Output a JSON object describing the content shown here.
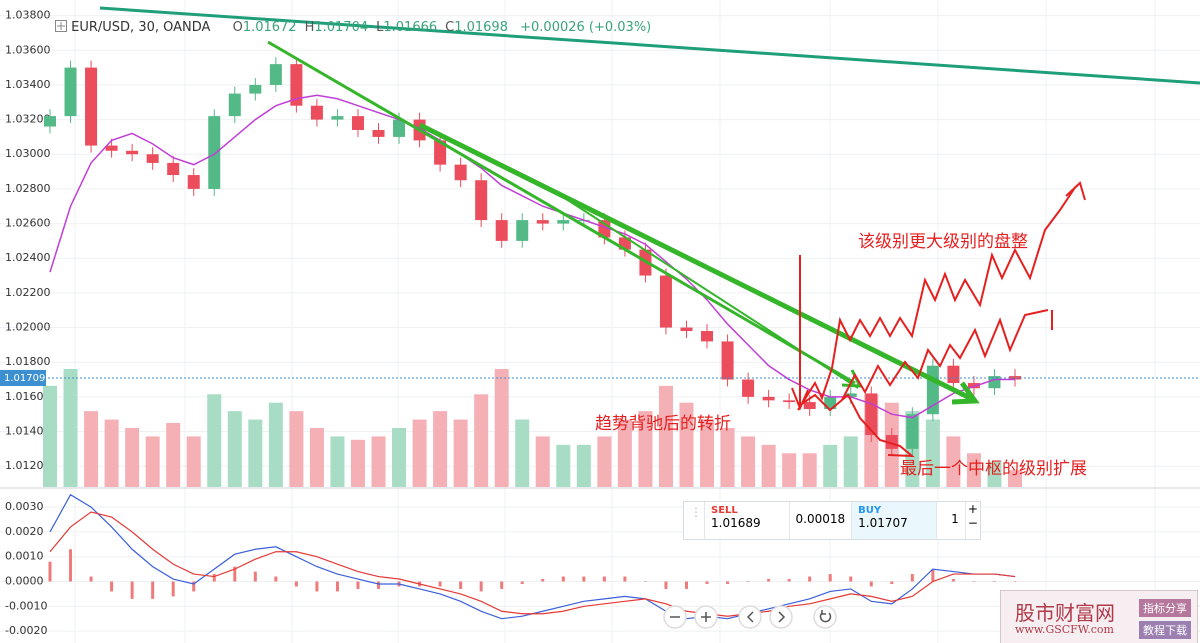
{
  "chart_data": [
    {
      "type": "candlestick",
      "categories": [
        null,
        null,
        null,
        null,
        null,
        null,
        null,
        null,
        null,
        null,
        null,
        null,
        null,
        null,
        null,
        null,
        null,
        null,
        null,
        null,
        null,
        null,
        null,
        null,
        null,
        null,
        null,
        null,
        null,
        null,
        null,
        null,
        null,
        null,
        null,
        null,
        null,
        null,
        null,
        null,
        null,
        null,
        null,
        null,
        null,
        null,
        null,
        null
      ],
      "open": [
        1.0316,
        1.0322,
        1.035,
        1.0305,
        1.0302,
        1.03,
        1.0295,
        1.0288,
        1.028,
        1.0322,
        1.0335,
        1.034,
        1.0352,
        1.0328,
        1.032,
        1.0322,
        1.0314,
        1.031,
        1.032,
        1.0308,
        1.0294,
        1.0285,
        1.0262,
        1.025,
        1.0262,
        1.026,
        1.0262,
        1.0262,
        1.0252,
        1.0245,
        1.023,
        1.02,
        1.0198,
        1.0192,
        1.017,
        1.016,
        1.0158,
        1.0157,
        1.0153,
        1.016,
        1.0162,
        1.0138,
        1.013,
        1.015,
        1.0178,
        1.0168,
        1.0165,
        1.0172
      ],
      "high": [
        1.0326,
        1.0354,
        1.0354,
        1.0309,
        1.0306,
        1.0304,
        1.0299,
        1.0292,
        1.0326,
        1.0339,
        1.0344,
        1.0356,
        1.0356,
        1.0332,
        1.0326,
        1.0326,
        1.0318,
        1.0324,
        1.0324,
        1.0312,
        1.0298,
        1.0289,
        1.0266,
        1.0266,
        1.0266,
        1.0266,
        1.0266,
        1.0266,
        1.0256,
        1.0249,
        1.0234,
        1.0204,
        1.0202,
        1.0196,
        1.0174,
        1.0164,
        1.0162,
        1.0161,
        1.0164,
        1.0166,
        1.0166,
        1.0142,
        1.0154,
        1.0182,
        1.0182,
        1.0172,
        1.0176,
        1.0176
      ],
      "low": [
        1.0312,
        1.0318,
        1.0301,
        1.0298,
        1.0296,
        1.0291,
        1.0284,
        1.0276,
        1.0276,
        1.0318,
        1.0331,
        1.0336,
        1.0324,
        1.0316,
        1.0316,
        1.031,
        1.0306,
        1.0306,
        1.0304,
        1.029,
        1.0281,
        1.0258,
        1.0246,
        1.0246,
        1.0256,
        1.0256,
        1.0258,
        1.0248,
        1.0241,
        1.0226,
        1.0196,
        1.0194,
        1.0188,
        1.0166,
        1.0156,
        1.0154,
        1.0153,
        1.0149,
        1.0149,
        1.0156,
        1.0134,
        1.0126,
        1.0126,
        1.0146,
        1.0164,
        1.0161,
        1.0161,
        1.0166
      ],
      "close": [
        1.0322,
        1.035,
        1.0305,
        1.0302,
        1.03,
        1.0295,
        1.0288,
        1.028,
        1.0322,
        1.0335,
        1.034,
        1.0352,
        1.0328,
        1.032,
        1.0322,
        1.0314,
        1.031,
        1.032,
        1.0308,
        1.0294,
        1.0285,
        1.0262,
        1.025,
        1.0262,
        1.026,
        1.0262,
        1.0262,
        1.0252,
        1.0245,
        1.023,
        1.02,
        1.0198,
        1.0192,
        1.017,
        1.016,
        1.0158,
        1.0157,
        1.0153,
        1.016,
        1.0162,
        1.0138,
        1.013,
        1.015,
        1.0178,
        1.0168,
        1.0165,
        1.0172,
        1.017
      ],
      "up_color": "#53b987",
      "down_color": "#eb4d5c",
      "ma": {
        "color": "#c03fd6",
        "values": [
          1.0232,
          1.027,
          1.0295,
          1.0308,
          1.0312,
          1.0306,
          1.0298,
          1.0294,
          1.03,
          1.031,
          1.032,
          1.0328,
          1.0332,
          1.0334,
          1.0332,
          1.0328,
          1.0324,
          1.032,
          1.0315,
          1.0308,
          1.03,
          1.0292,
          1.0282,
          1.0276,
          1.027,
          1.0266,
          1.0262,
          1.0258,
          1.0254,
          1.0248,
          1.0238,
          1.0228,
          1.0216,
          1.0202,
          1.019,
          1.0178,
          1.017,
          1.0164,
          1.016,
          1.016,
          1.0156,
          1.015,
          1.0148,
          1.0155,
          1.0162,
          1.0166,
          1.017,
          1.017
        ]
      },
      "volume": {
        "up_color": "#a8dcc4",
        "down_color": "#f5b0b6",
        "values": [
          60,
          70,
          45,
          40,
          35,
          30,
          38,
          30,
          55,
          45,
          40,
          50,
          45,
          35,
          30,
          28,
          30,
          35,
          40,
          45,
          40,
          55,
          70,
          40,
          30,
          25,
          25,
          30,
          40,
          45,
          60,
          50,
          40,
          35,
          30,
          25,
          20,
          20,
          25,
          30,
          55,
          50,
          45,
          40,
          30,
          20,
          15,
          10
        ]
      },
      "last_price": 1.01709,
      "last_price_color": "#3c8fd0",
      "ylim": [
        1.0108,
        1.0389
      ],
      "yticks": [
        {
          "value": 1.038,
          "label": "1.03800"
        },
        {
          "value": 1.036,
          "label": "1.03600"
        },
        {
          "value": 1.034,
          "label": "1.03400"
        },
        {
          "value": 1.032,
          "label": "1.03200"
        },
        {
          "value": 1.03,
          "label": "1.03000"
        },
        {
          "value": 1.028,
          "label": "1.02800"
        },
        {
          "value": 1.026,
          "label": "1.02600"
        },
        {
          "value": 1.024,
          "label": "1.02400"
        },
        {
          "value": 1.022,
          "label": "1.02200"
        },
        {
          "value": 1.02,
          "label": "1.02000"
        },
        {
          "value": 1.018,
          "label": "1.01800"
        },
        {
          "value": 1.016,
          "label": "1.01600"
        },
        {
          "value": 1.014,
          "label": "1.01400"
        },
        {
          "value": 1.012,
          "label": "1.01200"
        }
      ],
      "grid": true
    },
    {
      "type": "macd",
      "categories": [
        null,
        null,
        null,
        null,
        null,
        null,
        null,
        null,
        null,
        null,
        null,
        null,
        null,
        null,
        null,
        null,
        null,
        null,
        null,
        null,
        null,
        null,
        null,
        null,
        null,
        null,
        null,
        null,
        null,
        null,
        null,
        null,
        null,
        null,
        null,
        null,
        null,
        null,
        null,
        null,
        null,
        null,
        null,
        null,
        null,
        null,
        null,
        null
      ],
      "series": [
        {
          "color": "#3a5fd9",
          "values": [
            0.002,
            0.0035,
            0.003,
            0.0022,
            0.0013,
            0.0006,
            0.0001,
            -0.0001,
            0.0005,
            0.0011,
            0.0013,
            0.0014,
            0.001,
            0.0006,
            0.0003,
            0.0001,
            -0.0001,
            -0.0001,
            -0.0003,
            -0.0005,
            -0.0008,
            -0.0012,
            -0.0015,
            -0.0014,
            -0.0012,
            -0.001,
            -0.0008,
            -0.0007,
            -0.0006,
            -0.0007,
            -0.0012,
            -0.0015,
            -0.0014,
            -0.0015,
            -0.0013,
            -0.0011,
            -0.0009,
            -0.0007,
            -0.0004,
            -0.0003,
            -0.0008,
            -0.0009,
            -0.0003,
            0.0005,
            0.0004,
            0.0003,
            0.0003,
            0.0002
          ]
        },
        {
          "color": "#e53935",
          "values": [
            0.0012,
            0.0022,
            0.0028,
            0.0026,
            0.002,
            0.0013,
            0.0007,
            0.0003,
            0.0002,
            0.0005,
            0.0009,
            0.0012,
            0.0012,
            0.001,
            0.0007,
            0.0004,
            0.0002,
            0.0001,
            -0.0001,
            -0.0003,
            -0.0005,
            -0.0008,
            -0.0012,
            -0.0013,
            -0.0013,
            -0.0012,
            -0.001,
            -0.0009,
            -0.0008,
            -0.0007,
            -0.0009,
            -0.0012,
            -0.0013,
            -0.0014,
            -0.0013,
            -0.0012,
            -0.001,
            -0.0009,
            -0.0007,
            -0.0005,
            -0.0006,
            -0.0008,
            -0.0006,
            0.0,
            0.0003,
            0.0003,
            0.0003,
            0.0002
          ]
        }
      ],
      "histogram": {
        "color": "#ef7a7a",
        "values": [
          0.0008,
          0.0013,
          0.0002,
          -0.0004,
          -0.0007,
          -0.0007,
          -0.0006,
          -0.0004,
          0.0003,
          0.0006,
          0.0004,
          0.0002,
          -0.0002,
          -0.0004,
          -0.0004,
          -0.0003,
          -0.0003,
          -0.0002,
          -0.0002,
          -0.0002,
          -0.0003,
          -0.0004,
          -0.0003,
          -0.0001,
          0.0001,
          0.0002,
          0.0002,
          0.0002,
          0.0002,
          0.0,
          -0.0003,
          -0.0003,
          -0.0001,
          -0.0001,
          0.0,
          0.0001,
          0.0001,
          0.0002,
          0.0003,
          0.0002,
          -0.0002,
          -0.0001,
          0.0003,
          0.0005,
          0.0001,
          0.0,
          0.0,
          0.0
        ]
      },
      "ylim": [
        -0.00248,
        0.00369
      ],
      "yticks": [
        {
          "value": 0.003,
          "label": "0.0030"
        },
        {
          "value": 0.002,
          "label": "0.0020"
        },
        {
          "value": 0.001,
          "label": "0.0010"
        },
        {
          "value": 0,
          "label": "0.0000"
        },
        {
          "value": -0.001,
          "label": "-0.0010"
        },
        {
          "value": -0.002,
          "label": "-0.0020"
        }
      ],
      "grid": true
    }
  ],
  "header": {
    "symbol": "EUR/USD, 30, OANDA",
    "ohlc": [
      {
        "label": "O",
        "value": 1.01672
      },
      {
        "label": "H",
        "value": 1.01704
      },
      {
        "label": "L",
        "value": 1.01666
      },
      {
        "label": "C",
        "value": 1.01698
      }
    ],
    "change": "+0.00026 (+0.03%)"
  },
  "annotations": [
    "该级别更大级别的盘整",
    "趋势背驰后的转折",
    "最后一个中枢的级别扩展"
  ],
  "trade_panel": {
    "sell_label": "SELL",
    "sell_price": 1.01689,
    "spread": 0.00018,
    "buy_label": "BUY",
    "buy_price": 1.01707,
    "quantity": 1,
    "plus": "+",
    "minus": "−"
  },
  "watermark": {
    "title": "股市财富网",
    "url": "www.GSCFW.com",
    "tag1": "指标分享",
    "tag2": "教程下载"
  }
}
